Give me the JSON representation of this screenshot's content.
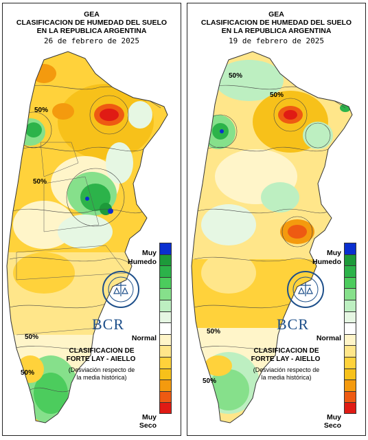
{
  "left": {
    "agency": "GEA",
    "title_line1": "CLASIFICACION DE HUMEDAD DEL SUELO",
    "title_line2": "EN LA REPUBLICA ARGENTINA",
    "date": "26 de febrero de 2025",
    "contour_labels": [
      "50%",
      "50%",
      "50%",
      "50%"
    ]
  },
  "right": {
    "agency": "GEA",
    "title_line1": "CLASIFICACION DE HUMEDAD DEL SUELO",
    "title_line2": "EN LA REPUBLICA ARGENTINA",
    "date": "19 de febrero de 2025",
    "contour_labels": [
      "50%",
      "50%",
      "50%",
      "50%"
    ]
  },
  "legend": {
    "top_label_1": "Muy",
    "top_label_2": "Humedo",
    "mid_label": "Normal",
    "bottom_label_1": "Muy",
    "bottom_label_2": "Seco",
    "colors": [
      "#0a2fd0",
      "#1d9a3a",
      "#2cb34a",
      "#4ccc5d",
      "#86e08b",
      "#bdefc1",
      "#e6f7e3",
      "#ffffff",
      "#fff5c9",
      "#ffe68a",
      "#ffd23b",
      "#f7c11a",
      "#f49a0e",
      "#ee5a12",
      "#e01b14"
    ]
  },
  "brand": "BCR",
  "classification_1": "CLASIFICACION DE",
  "classification_2": "FORTE LAY - AIELLO",
  "deviation_1": "(Desviación respecto de",
  "deviation_2": "la media histórica)"
}
